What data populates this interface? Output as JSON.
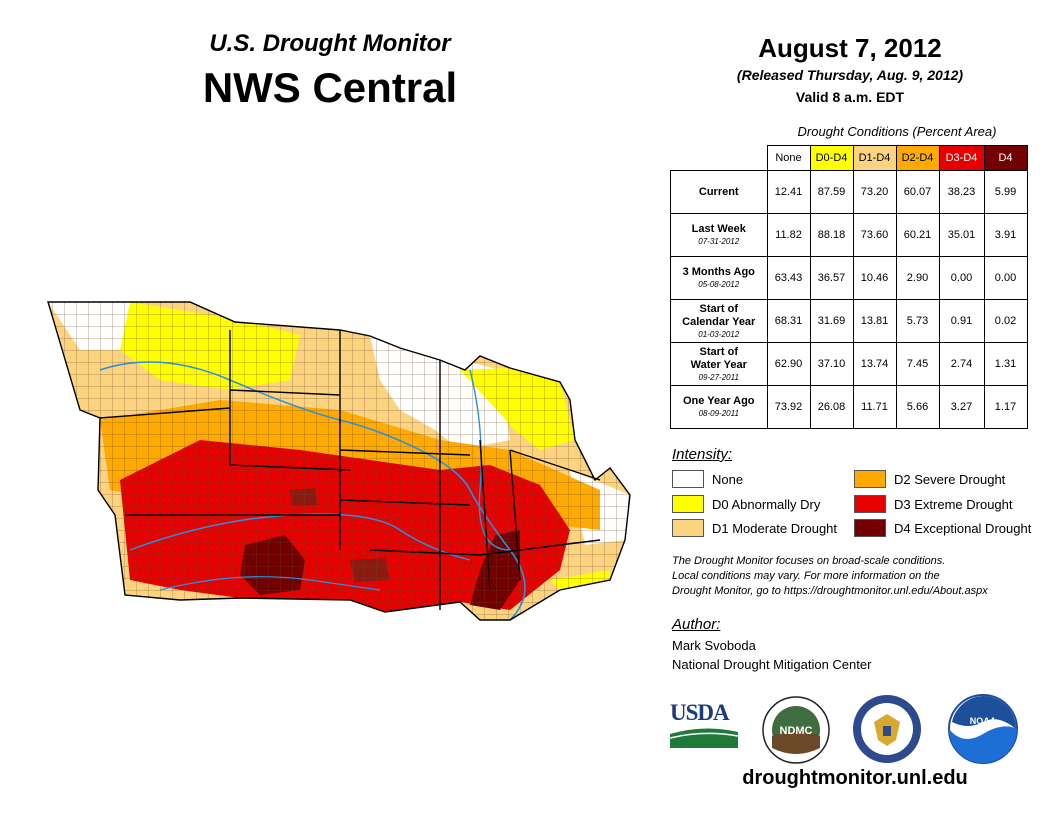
{
  "header": {
    "subtitle": "U.S. Drought Monitor",
    "title": "NWS Central",
    "date": "August 7, 2012",
    "released": "(Released Thursday, Aug. 9, 2012)",
    "valid": "Valid 8 a.m. EDT"
  },
  "table": {
    "caption": "Drought Conditions (Percent Area)",
    "columns": [
      {
        "label": "None",
        "color": "#ffffff",
        "text_color": "#000000"
      },
      {
        "label": "D0-D4",
        "color": "#ffff00",
        "text_color": "#000000"
      },
      {
        "label": "D1-D4",
        "color": "#fcd37f",
        "text_color": "#000000"
      },
      {
        "label": "D2-D4",
        "color": "#ffaa00",
        "text_color": "#000000"
      },
      {
        "label": "D3-D4",
        "color": "#e60000",
        "text_color": "#ffffff"
      },
      {
        "label": "D4",
        "color": "#730000",
        "text_color": "#ffffff"
      }
    ],
    "rows": [
      {
        "label": "Current",
        "date": "",
        "values": [
          "12.41",
          "87.59",
          "73.20",
          "60.07",
          "38.23",
          "5.99"
        ]
      },
      {
        "label": "Last Week",
        "date": "07-31-2012",
        "values": [
          "11.82",
          "88.18",
          "73.60",
          "60.21",
          "35.01",
          "3.91"
        ]
      },
      {
        "label": "3 Months Ago",
        "date": "05-08-2012",
        "values": [
          "63.43",
          "36.57",
          "10.46",
          "2.90",
          "0.00",
          "0.00"
        ]
      },
      {
        "label": "Start of\nCalendar Year",
        "date": "01-03-2012",
        "values": [
          "68.31",
          "31.69",
          "13.81",
          "5.73",
          "0.91",
          "0.02"
        ]
      },
      {
        "label": "Start of\nWater Year",
        "date": "09-27-2011",
        "values": [
          "62.90",
          "37.10",
          "13.74",
          "7.45",
          "2.74",
          "1.31"
        ]
      },
      {
        "label": "One Year Ago",
        "date": "08-09-2011",
        "values": [
          "73.92",
          "26.08",
          "11.71",
          "5.66",
          "3.27",
          "1.17"
        ]
      }
    ]
  },
  "legend": {
    "title": "Intensity:",
    "items": [
      {
        "label": "None",
        "color": "#ffffff"
      },
      {
        "label": "D0 Abnormally Dry",
        "color": "#ffff00"
      },
      {
        "label": "D1 Moderate Drought",
        "color": "#fcd37f"
      },
      {
        "label": "D2 Severe Drought",
        "color": "#ffaa00"
      },
      {
        "label": "D3 Extreme Drought",
        "color": "#e60000"
      },
      {
        "label": "D4 Exceptional Drought",
        "color": "#730000"
      }
    ]
  },
  "note": {
    "line1": "The Drought Monitor focuses on broad-scale conditions.",
    "line2": "Local conditions may vary. For more information on the",
    "line3": "Drought Monitor, go to https://droughtmonitor.unl.edu/About.aspx"
  },
  "author": {
    "title": "Author:",
    "name": "Mark Svoboda",
    "org": "National Drought Mitigation Center"
  },
  "logos": {
    "usda": "USDA",
    "ndmc": "NDMC",
    "noaa": "NOAA"
  },
  "footer": {
    "url": "droughtmonitor.unl.edu"
  }
}
